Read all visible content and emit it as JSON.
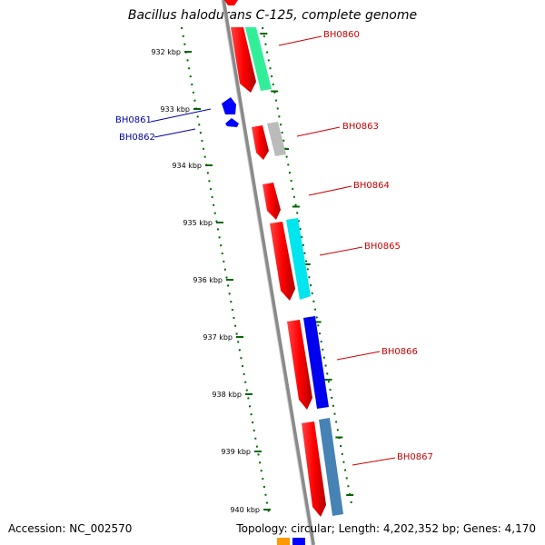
{
  "title": "Bacillus halodurans C-125, complete genome",
  "accession": "Accession: NC_002570",
  "topology": "Topology: circular; Length: 4,202,352 bp; Genes: 4,170",
  "ticks": [
    "932 kbp",
    "933 kbp",
    "934 kbp",
    "935 kbp",
    "936 kbp",
    "937 kbp",
    "938 kbp",
    "939 kbp",
    "940 kbp"
  ],
  "gene_labels": [
    {
      "name": "BH0860",
      "color": "#cc0000"
    },
    {
      "name": "BH0861",
      "color": "#0000aa"
    },
    {
      "name": "BH0862",
      "color": "#0000aa"
    },
    {
      "name": "BH0863",
      "color": "#cc0000"
    },
    {
      "name": "BH0864",
      "color": "#cc0000"
    },
    {
      "name": "BH0865",
      "color": "#cc0000"
    },
    {
      "name": "BH0866",
      "color": "#cc0000"
    },
    {
      "name": "BH0867",
      "color": "#cc0000"
    }
  ],
  "colors": {
    "cds": "#ff0000",
    "reverse": "#0000ff",
    "backbone": "#8a8a8a",
    "tick": "#006600",
    "cog_0860": "#33ee99",
    "cog_0863": "#bbbbbb",
    "cog_0865": "#00e5ee",
    "cog_0866": "#0000ee",
    "cog_0867": "#4682b4",
    "misc_orange": "#ff9900"
  }
}
